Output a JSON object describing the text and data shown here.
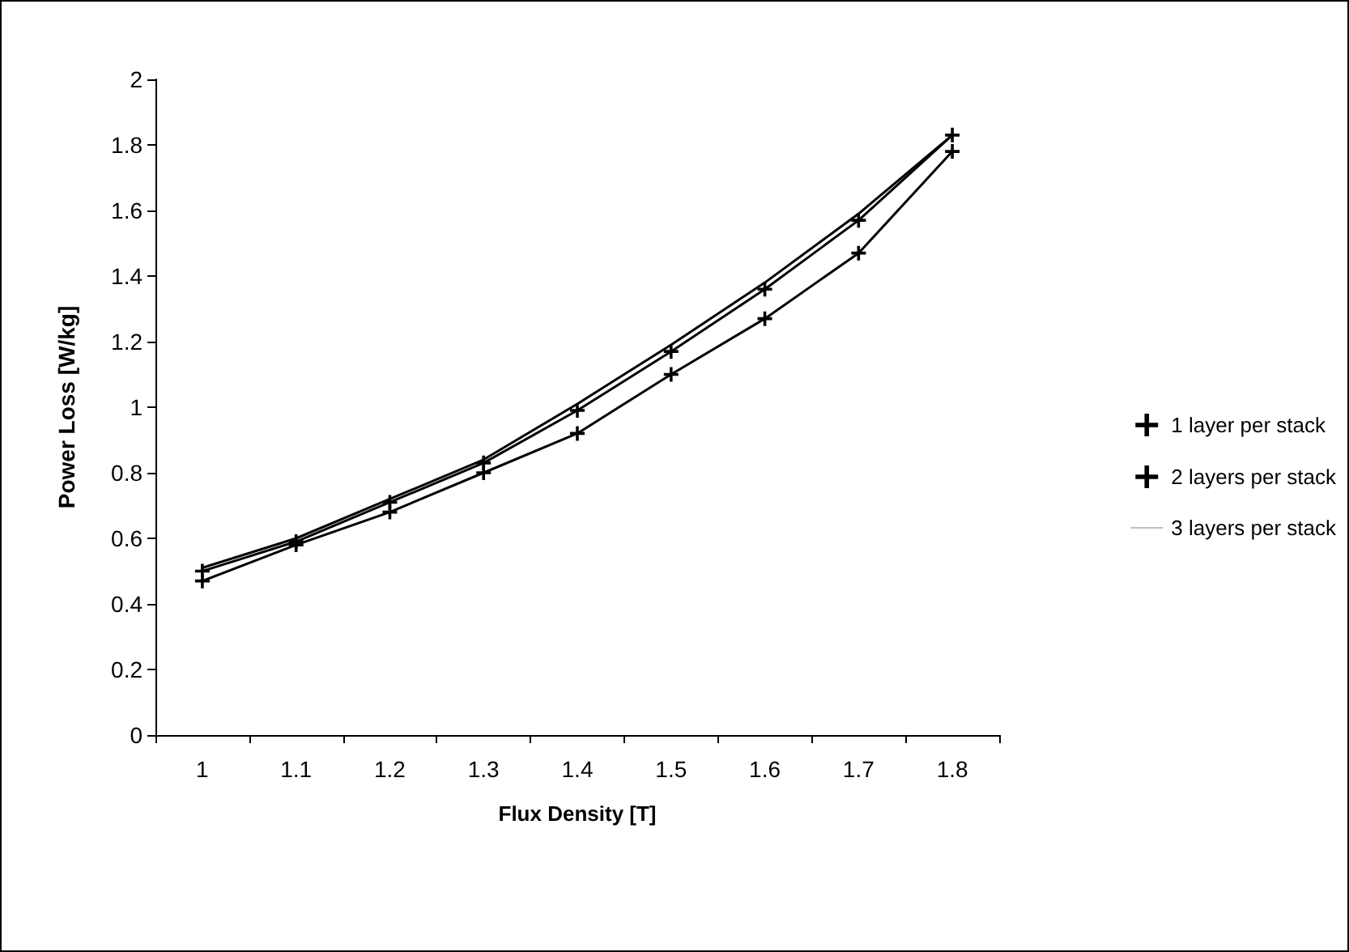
{
  "chart_data": {
    "type": "line",
    "xlabel": "Flux Density [T]",
    "ylabel": "Power Loss [W/kg]",
    "categories": [
      "1",
      "1.1",
      "1.2",
      "1.3",
      "1.4",
      "1.5",
      "1.6",
      "1.7",
      "1.8"
    ],
    "series": [
      {
        "name": "1 layer per stack",
        "color": "#000000",
        "marker": "cross",
        "values": [
          0.47,
          0.58,
          0.68,
          0.8,
          0.92,
          1.1,
          1.27,
          1.47,
          1.78
        ]
      },
      {
        "name": "2 layers per stack",
        "color": "#000000",
        "marker": "cross",
        "values": [
          0.5,
          0.59,
          0.71,
          0.83,
          0.99,
          1.17,
          1.36,
          1.57,
          1.83
        ]
      },
      {
        "name": "3 layers per stack",
        "color": "#000000",
        "marker": "none",
        "values": [
          0.51,
          0.6,
          0.72,
          0.84,
          1.01,
          1.19,
          1.38,
          1.59,
          1.83
        ]
      }
    ],
    "ylim": [
      0,
      2
    ],
    "yticks": [
      0,
      0.2,
      0.4,
      0.6,
      0.8,
      1,
      1.2,
      1.4,
      1.6,
      1.8,
      2
    ],
    "grid": false,
    "legend": "right",
    "line_style": "solid"
  }
}
